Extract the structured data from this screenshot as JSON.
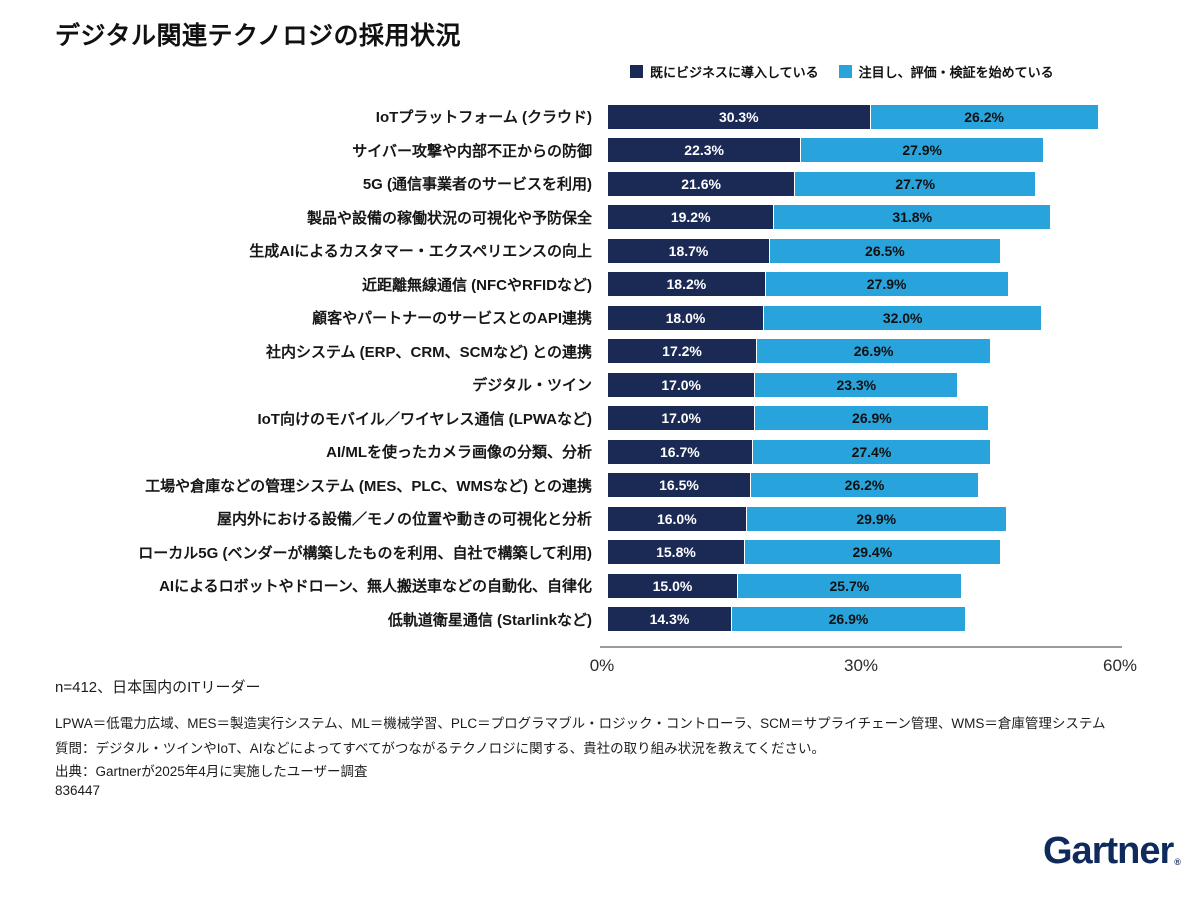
{
  "title": "デジタル関連テクノロジの採用状況",
  "chart_data": {
    "type": "bar",
    "orientation": "horizontal-stacked",
    "title": "デジタル関連テクノロジの採用状況",
    "categories": [
      "IoTプラットフォーム (クラウド)",
      "サイバー攻撃や内部不正からの防御",
      "5G (通信事業者のサービスを利用)",
      "製品や設備の稼働状況の可視化や予防保全",
      "生成AIによるカスタマー・エクスペリエンスの向上",
      "近距離無線通信 (NFCやRFIDなど)",
      "顧客やパートナーのサービスとのAPI連携",
      "社内システム (ERP、CRM、SCMなど) との連携",
      "デジタル・ツイン",
      "IoT向けのモバイル／ワイヤレス通信 (LPWAなど)",
      "AI/MLを使ったカメラ画像の分類、分析",
      "工場や倉庫などの管理システム (MES、PLC、WMSなど) との連携",
      "屋内外における設備／モノの位置や動きの可視化と分析",
      "ローカル5G (ベンダーが構築したものを利用、自社で構築して利用)",
      "AIによるロボットやドローン、無人搬送車などの自動化、自律化",
      "低軌道衛星通信 (Starlinkなど)"
    ],
    "series": [
      {
        "name": "既にビジネスに導入している",
        "color": "#1A2A55",
        "value_text_color": "#ffffff",
        "values": [
          30.3,
          22.3,
          21.6,
          19.2,
          18.7,
          18.2,
          18.0,
          17.2,
          17.0,
          17.0,
          16.7,
          16.5,
          16.0,
          15.8,
          15.0,
          14.3
        ]
      },
      {
        "name": "注目し、評価・検証を始めている",
        "color": "#29A3DC",
        "value_text_color": "#101010",
        "values": [
          26.2,
          27.9,
          27.7,
          31.8,
          26.5,
          27.9,
          32.0,
          26.9,
          23.3,
          26.9,
          27.4,
          26.2,
          29.9,
          29.4,
          25.7,
          26.9
        ]
      }
    ],
    "xticks": [
      "0%",
      "30%",
      "60%"
    ],
    "xlim": [
      0,
      60
    ],
    "grid": false,
    "legend_position": "top",
    "value_label_format": "percent-1dp"
  },
  "footer": {
    "sample": "n=412、日本国内のITリーダー",
    "abbreviations": "LPWA＝低電力広域、MES＝製造実行システム、ML＝機械学習、PLC＝プログラマブル・ロジック・コントローラ、SCM＝サプライチェーン管理、WMS＝倉庫管理システム",
    "question": "質問：デジタル・ツインやIoT、AIなどによってすべてがつながるテクノロジに関する、貴社の取り組み状況を教えてください。",
    "source": "出典：Gartnerが2025年4月に実施したユーザー調査",
    "doc_id": "836447"
  },
  "logo": {
    "text": "Gartner",
    "mark": "®",
    "color": "#0e2b5c"
  }
}
